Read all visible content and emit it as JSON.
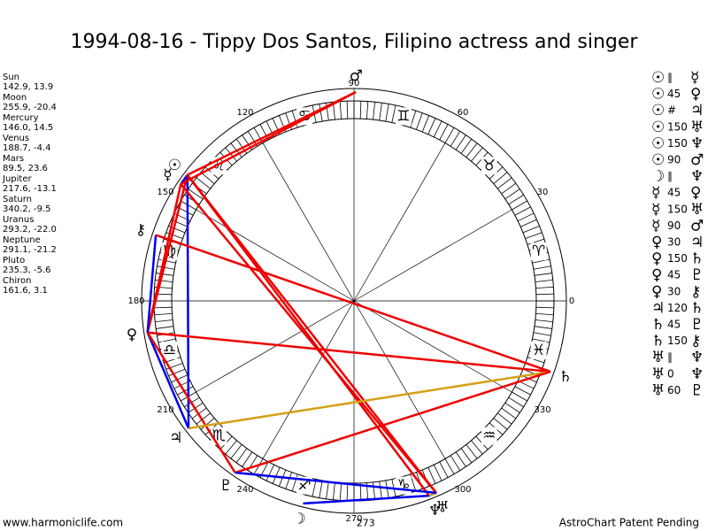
{
  "title": "1994-08-16 - Tippy Dos Santos, Filipino actress and singer",
  "planets": [
    {
      "name": "Sun",
      "glyph": "☉",
      "position": "142.9, 13.9"
    },
    {
      "name": "Moon",
      "glyph": "☽",
      "position": "255.9, -20.4"
    },
    {
      "name": "Mercury",
      "glyph": "☿",
      "position": "146.0, 14.5"
    },
    {
      "name": "Venus",
      "glyph": "♀",
      "position": "188.7, -4.4"
    },
    {
      "name": "Mars",
      "glyph": "♂",
      "position": "89.5, 23.6"
    },
    {
      "name": "Jupiter",
      "glyph": "♃",
      "position": "217.6, -13.1"
    },
    {
      "name": "Saturn",
      "glyph": "♄",
      "position": "340.2, -9.5"
    },
    {
      "name": "Uranus",
      "glyph": "♅",
      "position": "293.2, -22.0"
    },
    {
      "name": "Neptune",
      "glyph": "♆",
      "position": "291.1, -21.2"
    },
    {
      "name": "Pluto",
      "glyph": "♇",
      "position": "235.3, -5.6"
    },
    {
      "name": "Chiron",
      "glyph": "⚷",
      "position": "161.6, 3.1"
    }
  ],
  "aspects": [
    {
      "from": "☉",
      "aspect": "∥",
      "to": "☿"
    },
    {
      "from": "☉",
      "aspect": "45",
      "to": "♀"
    },
    {
      "from": "☉",
      "aspect": "#",
      "to": "♃"
    },
    {
      "from": "☉",
      "aspect": "150",
      "to": "♅"
    },
    {
      "from": "☉",
      "aspect": "150",
      "to": "♆"
    },
    {
      "from": "☉",
      "aspect": "90",
      "to": "♂"
    },
    {
      "from": "☽",
      "aspect": "∥",
      "to": "♆"
    },
    {
      "from": "☿",
      "aspect": "45",
      "to": "♀"
    },
    {
      "from": "☿",
      "aspect": "150",
      "to": "♅"
    },
    {
      "from": "☿",
      "aspect": "90",
      "to": "♂"
    },
    {
      "from": "♀",
      "aspect": "30",
      "to": "♃"
    },
    {
      "from": "♀",
      "aspect": "150",
      "to": "♄"
    },
    {
      "from": "♀",
      "aspect": "45",
      "to": "♇"
    },
    {
      "from": "♀",
      "aspect": "30",
      "to": "⚷"
    },
    {
      "from": "♃",
      "aspect": "120",
      "to": "♄"
    },
    {
      "from": "♄",
      "aspect": "45",
      "to": "♇"
    },
    {
      "from": "♄",
      "aspect": "150",
      "to": "⚷"
    },
    {
      "from": "♅",
      "aspect": "∥",
      "to": "♆"
    },
    {
      "from": "♅",
      "aspect": "0",
      "to": "♆"
    },
    {
      "from": "♅",
      "aspect": "60",
      "to": "♇"
    }
  ],
  "aspect_colors": {
    "∥": "#0000ee",
    "#": "#0000ee",
    "0": "#d4a017",
    "30": "#0000ee",
    "45": "#ee0000",
    "60": "#0000ee",
    "90": "#ee0000",
    "120": "#d4a017",
    "150": "#ee0000"
  },
  "wheel": {
    "degree_labels": [
      0,
      30,
      60,
      90,
      120,
      150,
      180,
      210,
      240,
      270,
      300,
      330
    ],
    "marker": 273,
    "signs": [
      "♈",
      "♉",
      "♊",
      "♋",
      "♌",
      "♍",
      "♎",
      "♏",
      "♐",
      "♑",
      "♒",
      "♓"
    ]
  },
  "footer": {
    "left": "www.harmoniclife.com",
    "right": "AstroChart Patent Pending"
  }
}
